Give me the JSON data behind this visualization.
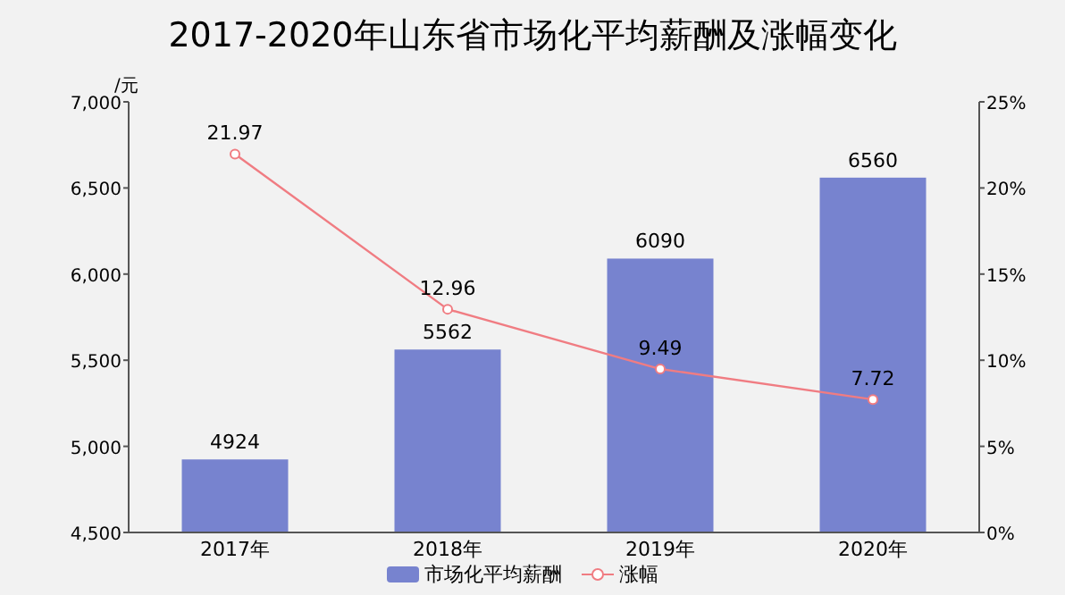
{
  "chart_data": {
    "type": "bar",
    "title": "2017-2020年山东省市场化平均薪酬及涨幅变化",
    "ylabel": "/元",
    "categories": [
      "2017年",
      "2018年",
      "2019年",
      "2020年"
    ],
    "series": [
      {
        "name": "市场化平均薪酬",
        "color": "#7783cf",
        "values": [
          4924,
          5562,
          6090,
          6560
        ]
      },
      {
        "name": "涨幅",
        "type": "line",
        "axis": "y2",
        "color": "#f07c82",
        "values": [
          21.97,
          12.96,
          9.49,
          7.72
        ]
      }
    ],
    "ylim": [
      4500,
      7000
    ],
    "yticks": [
      {
        "value": 4500,
        "label": "4,500"
      },
      {
        "value": 5000,
        "label": "5,000"
      },
      {
        "value": 5500,
        "label": "5,500"
      },
      {
        "value": 6000,
        "label": "6,000"
      },
      {
        "value": 6500,
        "label": "6,500"
      },
      {
        "value": 7000,
        "label": "7,000"
      }
    ],
    "y2lim": [
      0,
      25
    ],
    "y2ticks": [
      {
        "value": 0,
        "label": "0%"
      },
      {
        "value": 5,
        "label": "5%"
      },
      {
        "value": 10,
        "label": "10%"
      },
      {
        "value": 15,
        "label": "15%"
      },
      {
        "value": 20,
        "label": "20%"
      },
      {
        "value": 25,
        "label": "25%"
      }
    ],
    "data_labels": true,
    "legend": "bottom",
    "marker": "circle",
    "grid": false
  }
}
